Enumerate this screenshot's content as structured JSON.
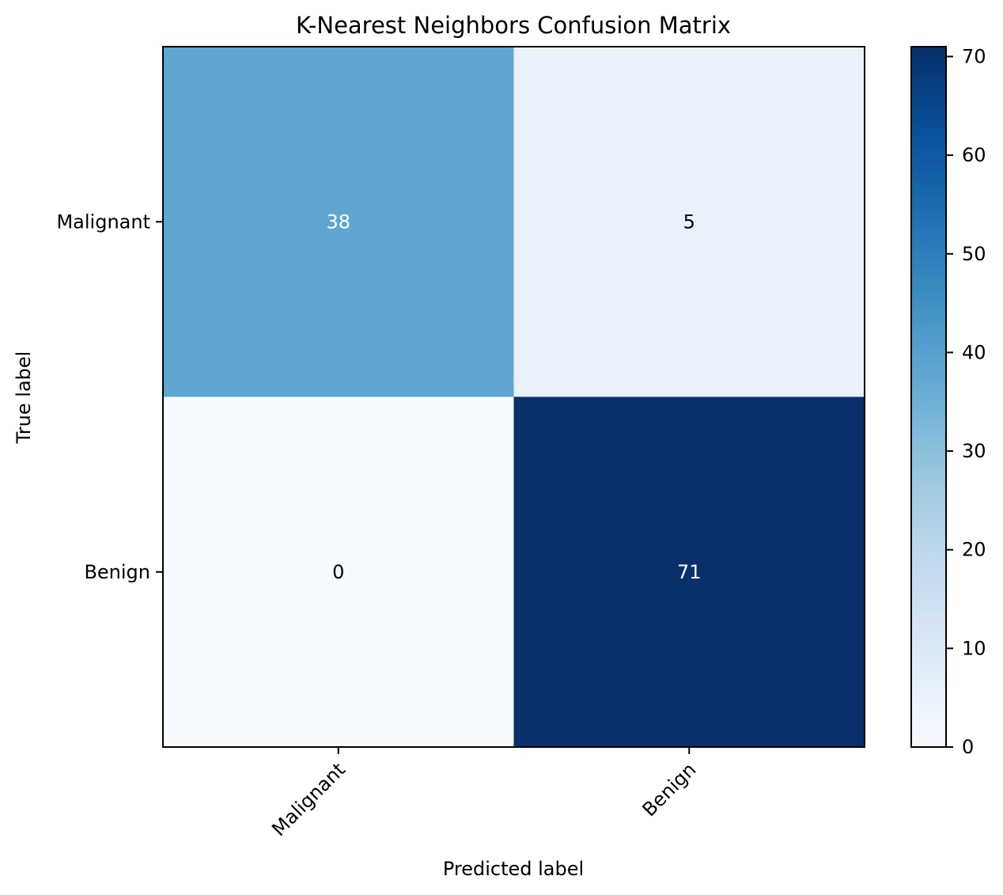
{
  "chart_data": {
    "type": "heatmap",
    "title": "K-Nearest Neighbors Confusion Matrix",
    "xlabel": "Predicted label",
    "ylabel": "True label",
    "x_categories": [
      "Malignant",
      "Benign"
    ],
    "y_categories": [
      "Malignant",
      "Benign"
    ],
    "values": [
      [
        38,
        5
      ],
      [
        0,
        71
      ]
    ],
    "cell_labels": [
      [
        "38",
        "5"
      ],
      [
        "0",
        "71"
      ]
    ],
    "colormap": "Blues",
    "colorbar": {
      "range": [
        0,
        71
      ],
      "ticks": [
        0,
        10,
        20,
        30,
        40,
        50,
        60,
        70
      ],
      "tick_labels": [
        "0",
        "10",
        "20",
        "30",
        "40",
        "50",
        "60",
        "70"
      ]
    },
    "grid": false
  }
}
